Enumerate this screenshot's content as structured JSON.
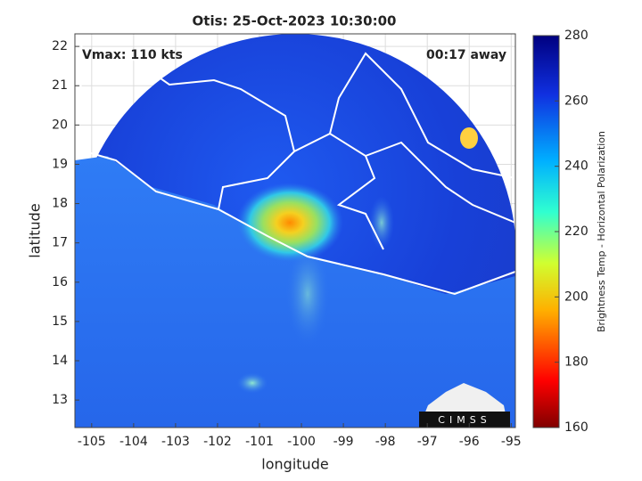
{
  "chart_data": {
    "type": "map",
    "title": "Otis: 25-Oct-2023 10:30:00",
    "annotations": [
      "Vmax: 110 kts",
      "00:17 away"
    ],
    "xlabel": "longitude",
    "ylabel": "latitude",
    "xlim": [
      -105.4,
      -94.9
    ],
    "ylim": [
      12.3,
      22.32
    ],
    "xticks": [
      -105,
      -104,
      -103,
      -102,
      -101,
      -100,
      -99,
      -98,
      -97,
      -96,
      -95
    ],
    "yticks": [
      13,
      14,
      15,
      16,
      17,
      18,
      19,
      20,
      21,
      22
    ],
    "grid": true,
    "colorbar": {
      "label": "Brightness Temp - Horizontal Polarization",
      "clim": [
        160,
        280
      ],
      "ticks": [
        160,
        180,
        200,
        220,
        240,
        260,
        280
      ]
    },
    "logo": "CIMSS"
  }
}
